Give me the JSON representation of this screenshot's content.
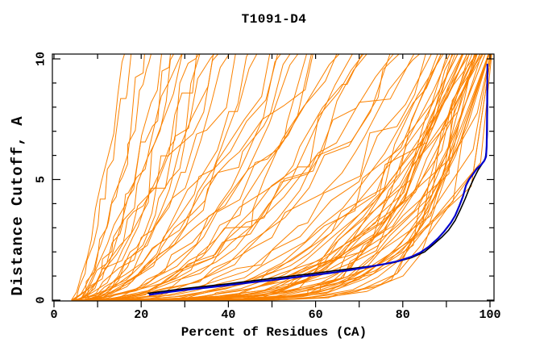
{
  "figure_title": "T1091-D4",
  "chart_data": {
    "type": "line",
    "title": "T1091-D4",
    "xlabel": "Percent of Residues (CA)",
    "ylabel": "Distance Cutoff, A",
    "xlim": [
      0,
      100.9
    ],
    "ylim": [
      0,
      10.2
    ],
    "x_major_ticks": [
      0,
      20,
      40,
      60,
      80,
      100
    ],
    "x_minor_ticks": [
      10,
      30,
      50,
      70,
      90
    ],
    "y_major_ticks": [
      0,
      5,
      10
    ],
    "y_minor_ticks": [
      1,
      2,
      3,
      4,
      6,
      7,
      8,
      9
    ],
    "grid": false,
    "legend": "none",
    "colors": {
      "ensemble": "#FB8200",
      "highlight_black": "#000000",
      "highlight_blue": "#0000CD",
      "frame": "#000000",
      "background": "#FFFFFF"
    },
    "series": [
      {
        "name": "ensemble-orange",
        "color_key": "ensemble",
        "line_width": 1,
        "representation": "parametric",
        "curve_params_format": [
          "x_start_percent",
          "x_at_top_percent",
          "shape_exponent",
          "jitter_seed"
        ],
        "curves": [
          [
            4,
            17,
            1.4,
            11
          ],
          [
            5,
            19,
            1.1,
            12
          ],
          [
            4,
            21,
            1.7,
            13
          ],
          [
            6,
            23,
            1.2,
            14
          ],
          [
            5,
            25,
            1.9,
            15
          ],
          [
            7,
            27,
            1.3,
            16
          ],
          [
            4,
            29,
            1.6,
            17
          ],
          [
            6,
            31,
            1.1,
            18
          ],
          [
            8,
            33,
            1.8,
            19
          ],
          [
            5,
            35,
            1.4,
            20
          ],
          [
            7,
            37,
            2.1,
            21
          ],
          [
            4,
            39,
            1.5,
            22
          ],
          [
            6,
            40,
            1.2,
            23
          ],
          [
            9,
            36,
            1.7,
            24
          ],
          [
            5,
            30,
            2.0,
            25
          ],
          [
            5,
            42,
            1.8,
            26
          ],
          [
            7,
            44,
            1.4,
            27
          ],
          [
            4,
            46,
            2.2,
            28
          ],
          [
            8,
            48,
            1.6,
            29
          ],
          [
            6,
            50,
            1.9,
            30
          ],
          [
            10,
            52,
            1.5,
            31
          ],
          [
            5,
            54,
            2.4,
            32
          ],
          [
            7,
            56,
            1.7,
            33
          ],
          [
            9,
            58,
            2.0,
            34
          ],
          [
            4,
            60,
            1.5,
            35
          ],
          [
            6,
            62,
            2.3,
            36
          ],
          [
            8,
            64,
            1.8,
            37
          ],
          [
            11,
            66,
            2.1,
            38
          ],
          [
            5,
            68,
            1.6,
            39
          ],
          [
            7,
            70,
            2.5,
            40
          ],
          [
            9,
            72,
            1.9,
            41
          ],
          [
            6,
            74,
            2.2,
            42
          ],
          [
            12,
            76,
            1.7,
            43
          ],
          [
            8,
            78,
            2.6,
            44
          ],
          [
            5,
            80,
            2.0,
            45
          ],
          [
            10,
            82,
            2.3,
            46
          ],
          [
            7,
            84,
            1.8,
            47
          ],
          [
            6,
            86,
            2.7,
            48
          ],
          [
            9,
            87,
            2.1,
            49
          ],
          [
            13,
            88,
            2.4,
            50
          ],
          [
            5,
            89,
            3.2,
            51
          ],
          [
            8,
            90,
            3.8,
            52
          ],
          [
            4,
            90,
            3.0,
            53
          ],
          [
            10,
            91,
            4.2,
            54
          ],
          [
            6,
            91,
            3.5,
            55
          ],
          [
            12,
            92,
            4.8,
            56
          ],
          [
            7,
            92,
            3.3,
            57
          ],
          [
            9,
            93,
            5.2,
            58
          ],
          [
            5,
            93,
            3.7,
            59
          ],
          [
            11,
            94,
            4.4,
            60
          ],
          [
            6,
            94,
            3.1,
            61
          ],
          [
            8,
            95,
            5.6,
            62
          ],
          [
            10,
            95,
            3.9,
            63
          ],
          [
            4,
            95,
            4.6,
            64
          ],
          [
            12,
            96,
            3.4,
            65
          ],
          [
            7,
            96,
            5.0,
            66
          ],
          [
            9,
            96,
            3.6,
            67
          ],
          [
            5,
            97,
            5.4,
            68
          ],
          [
            11,
            97,
            4.1,
            69
          ],
          [
            8,
            97,
            4.9,
            70
          ],
          [
            6,
            98,
            3.8,
            71
          ],
          [
            10,
            98,
            5.8,
            72
          ],
          [
            4,
            98,
            4.3,
            73
          ],
          [
            12,
            98,
            5.1,
            74
          ],
          [
            7,
            99,
            3.9,
            75
          ],
          [
            9,
            99,
            6.0,
            76
          ],
          [
            5,
            99,
            4.7,
            77
          ],
          [
            11,
            99,
            5.3,
            78
          ],
          [
            8,
            100,
            4.0,
            79
          ],
          [
            6,
            100,
            6.2,
            80
          ],
          [
            10,
            100,
            4.8,
            81
          ],
          [
            12,
            100,
            5.5,
            82
          ],
          [
            6,
            100.5,
            6.5,
            83
          ],
          [
            9,
            100.6,
            7.0,
            84
          ],
          [
            5,
            100.7,
            5.9,
            85
          ],
          [
            11,
            100.7,
            7.5,
            86
          ],
          [
            7,
            100.8,
            6.8,
            87
          ],
          [
            12,
            100.8,
            8.0,
            88
          ],
          [
            8,
            100.9,
            6.3,
            89
          ],
          [
            5,
            100.9,
            8.5,
            90
          ],
          [
            10,
            101,
            7.2,
            91
          ],
          [
            6,
            101,
            9.0,
            92
          ]
        ]
      },
      {
        "name": "highlight-black",
        "color_key": "highlight_black",
        "line_width": 1.6,
        "points": [
          [
            21.5,
            0.28
          ],
          [
            30,
            0.48
          ],
          [
            40,
            0.68
          ],
          [
            50,
            0.9
          ],
          [
            60,
            1.12
          ],
          [
            68,
            1.3
          ],
          [
            74,
            1.44
          ],
          [
            78,
            1.56
          ],
          [
            82,
            1.76
          ],
          [
            85,
            2.0
          ],
          [
            87,
            2.3
          ],
          [
            89,
            2.62
          ],
          [
            90.5,
            2.9
          ],
          [
            92,
            3.3
          ],
          [
            93.2,
            3.75
          ],
          [
            94.3,
            4.2
          ],
          [
            95.3,
            4.65
          ],
          [
            96.3,
            5.05
          ],
          [
            97.3,
            5.4
          ],
          [
            98.2,
            5.65
          ],
          [
            98.9,
            5.85
          ],
          [
            99.2,
            6.2
          ],
          [
            99.35,
            6.9
          ],
          [
            99.4,
            7.8
          ],
          [
            99.45,
            9.8
          ]
        ]
      },
      {
        "name": "highlight-blue",
        "color_key": "highlight_blue",
        "line_width": 2.2,
        "points": [
          [
            21.8,
            0.22
          ],
          [
            26,
            0.33
          ],
          [
            30,
            0.42
          ],
          [
            35,
            0.52
          ],
          [
            40,
            0.62
          ],
          [
            45,
            0.73
          ],
          [
            50,
            0.83
          ],
          [
            55,
            0.94
          ],
          [
            60,
            1.05
          ],
          [
            64,
            1.14
          ],
          [
            68,
            1.25
          ],
          [
            72,
            1.37
          ],
          [
            76,
            1.5
          ],
          [
            79,
            1.62
          ],
          [
            82,
            1.8
          ],
          [
            84,
            1.97
          ],
          [
            86,
            2.22
          ],
          [
            88,
            2.55
          ],
          [
            89.5,
            2.85
          ],
          [
            91,
            3.2
          ],
          [
            92,
            3.5
          ],
          [
            93,
            3.92
          ],
          [
            93.8,
            4.3
          ],
          [
            94.5,
            4.75
          ],
          [
            95.2,
            5.0
          ],
          [
            96,
            5.2
          ],
          [
            97,
            5.45
          ],
          [
            98,
            5.62
          ],
          [
            98.7,
            5.78
          ],
          [
            99.1,
            5.95
          ],
          [
            99.25,
            6.4
          ],
          [
            99.3,
            7.0
          ],
          [
            99.35,
            8.0
          ],
          [
            99.4,
            9.8
          ]
        ]
      }
    ]
  }
}
